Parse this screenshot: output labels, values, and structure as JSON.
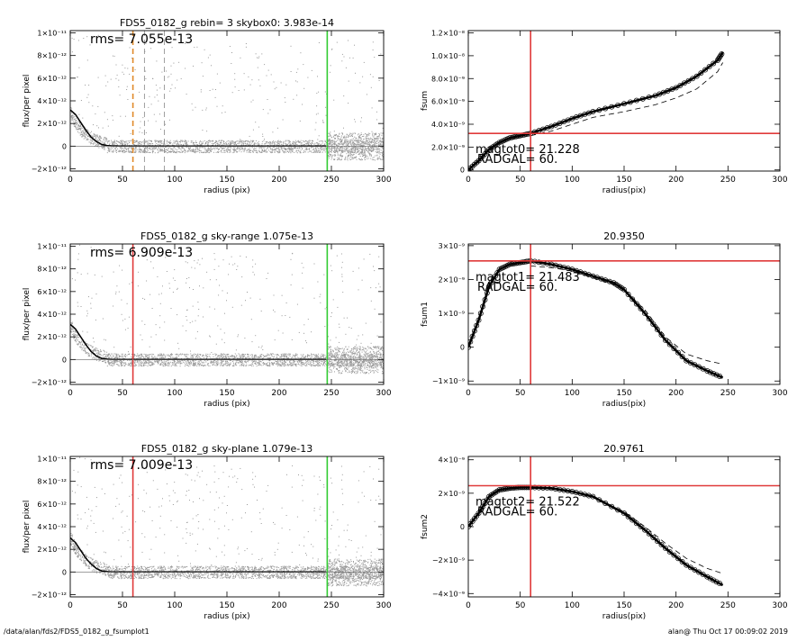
{
  "footer": {
    "path": "/data/alan/fds2/FDS5_0182_g_fsumplot1",
    "stamp": "alan@  Thu Oct 17 00:09:02 2019"
  },
  "colors": {
    "points": "#999999",
    "profile": "#000000",
    "red": "#e03a3a",
    "green": "#33cc33",
    "orange": "#e08a2a",
    "dashed": "#888888"
  },
  "chart_data": [
    {
      "type": "scatter",
      "title": "FDS5_0182_g rebin= 3    skybox0:  3.983e-14",
      "annotation": "rms= 7.055e-13",
      "xlabel": "radius (pix)",
      "ylabel": "flux/per pixel",
      "xlim": [
        0,
        300
      ],
      "ylim": [
        -2.2e-12,
        1.02e-11
      ],
      "xticks": [
        0,
        50,
        100,
        150,
        200,
        250,
        300
      ],
      "xtick_labels": [
        "0",
        "50",
        "100",
        "150",
        "200",
        "250",
        "300"
      ],
      "yticks": [
        -2e-12,
        0,
        2e-12,
        4e-12,
        6e-12,
        8e-12,
        1e-11
      ],
      "ytick_labels": [
        "−2×10⁻¹²",
        "0",
        "2×10⁻¹²",
        "4×10⁻¹²",
        "6×10⁻¹²",
        "8×10⁻¹²",
        "1×10⁻¹¹"
      ],
      "profile": {
        "x": [
          0,
          5,
          10,
          15,
          20,
          25,
          30,
          35,
          40,
          50,
          60,
          80,
          100,
          150,
          200,
          245
        ],
        "y": [
          3.2e-12,
          2.8e-12,
          2.1e-12,
          1.4e-12,
          8e-13,
          4e-13,
          1.5e-13,
          6e-14,
          2e-14,
          1e-14,
          0,
          0,
          0,
          0,
          0,
          0
        ]
      },
      "vlines": [
        {
          "x": 60,
          "style": "dashed",
          "color": "orange"
        },
        {
          "x": 71,
          "style": "dashed",
          "color": "gray"
        },
        {
          "x": 90,
          "style": "dashed",
          "color": "gray"
        },
        {
          "x": 246,
          "style": "solid",
          "color": "green"
        }
      ],
      "grid": false
    },
    {
      "type": "line",
      "title": "",
      "xlabel": "radius(pix)",
      "ylabel": "fsum",
      "xlim": [
        0,
        300
      ],
      "ylim": [
        -1e-10,
        1.22e-08
      ],
      "xticks": [
        0,
        50,
        100,
        150,
        200,
        250,
        300
      ],
      "xtick_labels": [
        "0",
        "50",
        "100",
        "150",
        "200",
        "250",
        "300"
      ],
      "yticks": [
        0,
        2e-09,
        4e-09,
        6e-09,
        8e-09,
        1e-08,
        1.2e-08
      ],
      "ytick_labels": [
        "0",
        "2.0×10⁻⁹",
        "4.0×10⁻⁹",
        "6.0×10⁻⁹",
        "8.0×10⁻⁹",
        "1.0×10⁻⁸",
        "1.2×10⁻⁸"
      ],
      "series": [
        {
          "x": [
            0,
            10,
            20,
            30,
            40,
            50,
            60,
            80,
            100,
            120,
            150,
            180,
            200,
            220,
            240,
            245
          ],
          "y": [
            0,
            8e-10,
            1.8e-09,
            2.4e-09,
            2.8e-09,
            3e-09,
            3.2e-09,
            3.8e-09,
            4.5e-09,
            5.1e-09,
            5.8e-09,
            6.5e-09,
            7.2e-09,
            8.2e-09,
            9.6e-09,
            1.03e-08
          ]
        },
        {
          "x": [
            60,
            80,
            100,
            120,
            150,
            180,
            200,
            220,
            240,
            245
          ],
          "y": [
            3e-09,
            3.4e-09,
            4e-09,
            4.6e-09,
            5.1e-09,
            5.7e-09,
            6.3e-09,
            7.1e-09,
            8.6e-09,
            9.4e-09
          ]
        }
      ],
      "vline_x": 60,
      "hline_y": 3.2e-09,
      "annotations": [
        "magtot0=  21.228",
        "RADGAL=     60."
      ],
      "grid": false
    },
    {
      "type": "scatter",
      "title": "FDS5_0182_g sky-range  1.075e-13",
      "annotation": "rms= 6.909e-13",
      "xlabel": "radius (pix)",
      "ylabel": "flux/per pixel",
      "xlim": [
        0,
        300
      ],
      "ylim": [
        -2.2e-12,
        1.02e-11
      ],
      "xticks": [
        0,
        50,
        100,
        150,
        200,
        250,
        300
      ],
      "xtick_labels": [
        "0",
        "50",
        "100",
        "150",
        "200",
        "250",
        "300"
      ],
      "yticks": [
        -2e-12,
        0,
        2e-12,
        4e-12,
        6e-12,
        8e-12,
        1e-11
      ],
      "ytick_labels": [
        "−2×10⁻¹²",
        "0",
        "2×10⁻¹²",
        "4×10⁻¹²",
        "6×10⁻¹²",
        "8×10⁻¹²",
        "1×10⁻¹¹"
      ],
      "profile": {
        "x": [
          0,
          5,
          10,
          15,
          20,
          25,
          30,
          35,
          40,
          50,
          60,
          80,
          100,
          150,
          200,
          245
        ],
        "y": [
          3.1e-12,
          2.7e-12,
          2e-12,
          1.3e-12,
          7e-13,
          3e-13,
          1e-13,
          3e-14,
          0,
          0,
          0,
          0,
          0,
          0,
          0,
          0
        ]
      },
      "vlines": [
        {
          "x": 60,
          "style": "solid",
          "color": "red"
        },
        {
          "x": 246,
          "style": "solid",
          "color": "green"
        }
      ],
      "grid": false
    },
    {
      "type": "line",
      "title": "20.9350",
      "xlabel": "radius(pix)",
      "ylabel": "fsum1",
      "xlim": [
        0,
        300
      ],
      "ylim": [
        -1.1e-09,
        3.05e-09
      ],
      "xticks": [
        0,
        50,
        100,
        150,
        200,
        250,
        300
      ],
      "xtick_labels": [
        "0",
        "50",
        "100",
        "150",
        "200",
        "250",
        "300"
      ],
      "yticks": [
        -1e-09,
        0,
        1e-09,
        2e-09,
        3e-09
      ],
      "ytick_labels": [
        "−1×10⁻⁹",
        "0",
        "1×10⁻⁹",
        "2×10⁻⁹",
        "3×10⁻⁹"
      ],
      "series": [
        {
          "x": [
            0,
            10,
            20,
            30,
            40,
            50,
            60,
            80,
            100,
            120,
            140,
            150,
            170,
            190,
            210,
            230,
            245
          ],
          "y": [
            0,
            8e-10,
            1.8e-09,
            2.3e-09,
            2.45e-09,
            2.5e-09,
            2.55e-09,
            2.45e-09,
            2.3e-09,
            2.1e-09,
            1.9e-09,
            1.7e-09,
            1e-09,
            2e-10,
            -4e-10,
            -7e-10,
            -9e-10
          ]
        },
        {
          "x": [
            60,
            80,
            100,
            120,
            140,
            150,
            170,
            190,
            210,
            230,
            245
          ],
          "y": [
            2.4e-09,
            2.35e-09,
            2.25e-09,
            2.05e-09,
            1.85e-09,
            1.7e-09,
            1.1e-09,
            3e-10,
            -2e-10,
            -4e-10,
            -5e-10
          ]
        }
      ],
      "vline_x": 60,
      "hline_y": 2.55e-09,
      "annotations": [
        "magtot1=  21.483",
        "RADGAL=     60."
      ],
      "grid": false
    },
    {
      "type": "scatter",
      "title": "FDS5_0182_g sky-plane  1.079e-13",
      "annotation": "rms= 7.009e-13",
      "xlabel": "radius (pix)",
      "ylabel": "flux/per pixel",
      "xlim": [
        0,
        300
      ],
      "ylim": [
        -2.2e-12,
        1.02e-11
      ],
      "xticks": [
        0,
        50,
        100,
        150,
        200,
        250,
        300
      ],
      "xtick_labels": [
        "0",
        "50",
        "100",
        "150",
        "200",
        "250",
        "300"
      ],
      "yticks": [
        -2e-12,
        0,
        2e-12,
        4e-12,
        6e-12,
        8e-12,
        1e-11
      ],
      "ytick_labels": [
        "−2×10⁻¹²",
        "0",
        "2×10⁻¹²",
        "4×10⁻¹²",
        "6×10⁻¹²",
        "8×10⁻¹²",
        "1×10⁻¹¹"
      ],
      "profile": {
        "x": [
          0,
          5,
          10,
          15,
          20,
          25,
          30,
          35,
          40,
          50,
          60,
          80,
          100,
          150,
          200,
          245
        ],
        "y": [
          3e-12,
          2.6e-12,
          1.9e-12,
          1.2e-12,
          7e-13,
          3e-13,
          1e-13,
          3e-14,
          0,
          0,
          0,
          0,
          0,
          0,
          0,
          0
        ]
      },
      "vlines": [
        {
          "x": 60,
          "style": "solid",
          "color": "red"
        },
        {
          "x": 246,
          "style": "solid",
          "color": "green"
        }
      ],
      "grid": false
    },
    {
      "type": "line",
      "title": "20.9761",
      "xlabel": "radius(pix)",
      "ylabel": "fsum2",
      "xlim": [
        0,
        300
      ],
      "ylim": [
        -4.2e-09,
        4.2e-09
      ],
      "xticks": [
        0,
        50,
        100,
        150,
        200,
        250,
        300
      ],
      "xtick_labels": [
        "0",
        "50",
        "100",
        "150",
        "200",
        "250",
        "300"
      ],
      "yticks": [
        -4e-09,
        -2e-09,
        0,
        2e-09,
        4e-09
      ],
      "ytick_labels": [
        "−4×10⁻⁹",
        "−2×10⁻⁹",
        "0",
        "2×10⁻⁹",
        "4×10⁻⁹"
      ],
      "series": [
        {
          "x": [
            0,
            10,
            20,
            30,
            40,
            50,
            60,
            80,
            100,
            120,
            150,
            170,
            190,
            210,
            230,
            245
          ],
          "y": [
            0,
            8e-10,
            1.8e-09,
            2.2e-09,
            2.3e-09,
            2.35e-09,
            2.35e-09,
            2.3e-09,
            2.1e-09,
            1.8e-09,
            8e-10,
            -2e-10,
            -1.3e-09,
            -2.3e-09,
            -3e-09,
            -3.5e-09
          ]
        },
        {
          "x": [
            60,
            80,
            100,
            120,
            150,
            170,
            190,
            210,
            230,
            245
          ],
          "y": [
            2.3e-09,
            2.25e-09,
            2.05e-09,
            1.75e-09,
            9e-10,
            0,
            -1e-09,
            -1.9e-09,
            -2.5e-09,
            -2.8e-09
          ]
        }
      ],
      "vline_x": 60,
      "hline_y": 2.45e-09,
      "annotations": [
        "magtot2=  21.522",
        "RADGAL=     60."
      ],
      "grid": false
    }
  ]
}
